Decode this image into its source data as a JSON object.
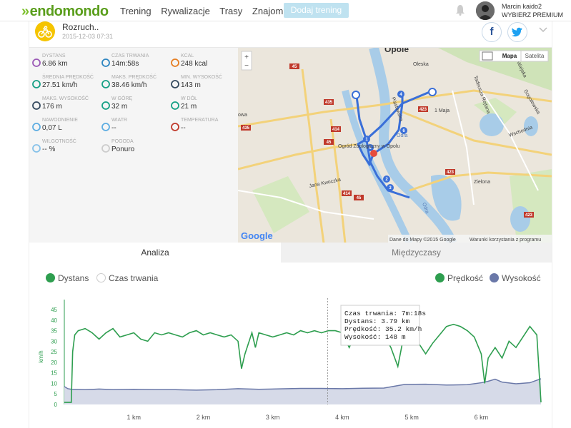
{
  "header": {
    "logo": "endomondo",
    "nav": [
      "Trening",
      "Rywalizacje",
      "Trasy",
      "Znajomi"
    ],
    "add_button": "Dodaj trening",
    "user_name": "Marcin kaido2",
    "user_sub": "WYBIERZ PREMIUM"
  },
  "workout": {
    "title": "Rozruch..",
    "date": "2015-12-03 07:31",
    "facebook": "f",
    "twitter": "t"
  },
  "stats": [
    {
      "label": "DYSTANS",
      "value": "6.86 km",
      "icon": "route-icon"
    },
    {
      "label": "CZAS TRWANIA",
      "value": "14m:58s",
      "icon": "stopwatch-icon"
    },
    {
      "label": "KCAL",
      "value": "248 kcal",
      "icon": "flame-icon"
    },
    {
      "label": "ŚREDNIA PRĘDKOŚĆ",
      "value": "27.51 km/h",
      "icon": "speedometer-icon"
    },
    {
      "label": "MAKS. PRĘDKOŚĆ",
      "value": "38.46 km/h",
      "icon": "speedometer-icon"
    },
    {
      "label": "MIN. WYSOKOŚĆ",
      "value": "143 m",
      "icon": "mountain-icon"
    },
    {
      "label": "MAKS. WYSOKOŚĆ",
      "value": "176 m",
      "icon": "mountain-icon"
    },
    {
      "label": "W GÓRĘ",
      "value": "32 m",
      "icon": "ascent-icon"
    },
    {
      "label": "W DÓŁ",
      "value": "21 m",
      "icon": "descent-icon"
    },
    {
      "label": "NAWODNIENIE",
      "value": "0,07 L",
      "icon": "drop-icon"
    },
    {
      "label": "WIATR",
      "value": "--",
      "icon": "wind-icon"
    },
    {
      "label": "TEMPERATURA",
      "value": "--",
      "icon": "thermometer-icon"
    },
    {
      "label": "WILGOTNOŚĆ",
      "value": "-- %",
      "icon": "humidity-icon"
    },
    {
      "label": "POGODA",
      "value": "Ponuro",
      "icon": "cloud-icon"
    }
  ],
  "map": {
    "type_map": "Mapa",
    "type_satellite": "Satelita",
    "zoom_in": "+",
    "zoom_out": "−",
    "google": "Google",
    "attribution": "Dane do Mapy ©2015 Google",
    "terms": "Warunki korzystania z programu",
    "labels": [
      "Opole",
      "Oleska",
      "1 Maja",
      "Piastowska",
      "Odra",
      "Ogród Zoologiczny w Opolu",
      "Jana Kwoczka",
      "Zielona",
      "Wschodnia",
      "Tadeusza Rejtana",
      "Gogolewska",
      "Wiejska",
      "Odra",
      "owa"
    ],
    "road_numbers": [
      "45",
      "435",
      "423",
      "414",
      "423",
      "435",
      "45",
      "414",
      "45",
      "423",
      "435",
      "423",
      "423",
      "435",
      "435",
      "423"
    ],
    "route_markers": [
      "1",
      "2",
      "3",
      "4",
      "5",
      "6"
    ]
  },
  "tabs": {
    "analysis": "Analiza",
    "splits": "Międzyczasy"
  },
  "chart_controls": {
    "x_distance": "Dystans",
    "x_duration": "Czas trwania",
    "speed": "Prędkość",
    "altitude": "Wysokość"
  },
  "tooltip": {
    "line1": "Czas trwania: 7m:18s",
    "line2": "Dystans: 3.79 km",
    "line3": "Prędkość: 35.2 km/h",
    "line4": "Wysokość: 148 m"
  },
  "colors": {
    "green": "#2e9e4f",
    "altitude": "#6a78a8",
    "altitude_fill": "#d6dae8",
    "brand": "#5a9e1c"
  },
  "chart_data": {
    "type": "line",
    "ylabel": "km/h",
    "ylim": [
      0,
      45
    ],
    "xlim": [
      0,
      6.86
    ],
    "yticks": [
      0,
      5,
      10,
      15,
      20,
      25,
      30,
      35,
      40,
      45
    ],
    "xticks": [
      1,
      2,
      3,
      4,
      5,
      6
    ],
    "xtick_labels": [
      "1 km",
      "2 km",
      "3 km",
      "4 km",
      "5 km",
      "6 km"
    ],
    "cursor_x": 3.79,
    "series": [
      {
        "name": "Prędkość",
        "x": [
          0,
          0.1,
          0.12,
          0.15,
          0.2,
          0.3,
          0.4,
          0.5,
          0.6,
          0.7,
          0.8,
          0.9,
          1.0,
          1.1,
          1.2,
          1.3,
          1.4,
          1.5,
          1.6,
          1.7,
          1.8,
          1.9,
          2.0,
          2.1,
          2.2,
          2.3,
          2.4,
          2.5,
          2.55,
          2.6,
          2.7,
          2.75,
          2.8,
          2.9,
          3.0,
          3.1,
          3.2,
          3.3,
          3.4,
          3.5,
          3.6,
          3.7,
          3.8,
          3.9,
          4.0,
          4.1,
          4.2,
          4.3,
          4.4,
          4.5,
          4.6,
          4.7,
          4.8,
          4.9,
          5.0,
          5.1,
          5.2,
          5.3,
          5.4,
          5.5,
          5.6,
          5.7,
          5.8,
          5.9,
          6.0,
          6.05,
          6.1,
          6.2,
          6.3,
          6.4,
          6.5,
          6.6,
          6.7,
          6.8,
          6.86
        ],
        "values": [
          1,
          1,
          25,
          33,
          35,
          36,
          34,
          31,
          34,
          36,
          32,
          33,
          34,
          31,
          30,
          34,
          33,
          34,
          33,
          32,
          34,
          35,
          33,
          34,
          33,
          32,
          33,
          30,
          17,
          24,
          34,
          27,
          34,
          33,
          32,
          33,
          34,
          33,
          35,
          34,
          35,
          34,
          35,
          35,
          34,
          27,
          34,
          33,
          31,
          34,
          33,
          27,
          18,
          35,
          33,
          29,
          24,
          29,
          33,
          37,
          38,
          37,
          35,
          32,
          24,
          10,
          22,
          27,
          22,
          30,
          27,
          32,
          37,
          33,
          1
        ]
      },
      {
        "name": "Wysokość",
        "x": [
          0,
          0.05,
          0.1,
          0.3,
          0.5,
          0.7,
          1.0,
          1.3,
          1.6,
          1.9,
          2.2,
          2.5,
          2.8,
          3.1,
          3.4,
          3.7,
          4.0,
          4.3,
          4.6,
          4.9,
          5.2,
          5.5,
          5.8,
          6.0,
          6.1,
          6.2,
          6.3,
          6.5,
          6.7,
          6.86
        ],
        "values": [
          8.5,
          7.5,
          7.2,
          7,
          7.3,
          7,
          7.2,
          7,
          7,
          6.8,
          7,
          7.5,
          7.2,
          7.4,
          7.6,
          7.6,
          7.5,
          7.7,
          7.8,
          9.5,
          9.6,
          9.2,
          9.4,
          10.3,
          11,
          12,
          10.6,
          9.8,
          10.3,
          12.2
        ]
      }
    ]
  }
}
